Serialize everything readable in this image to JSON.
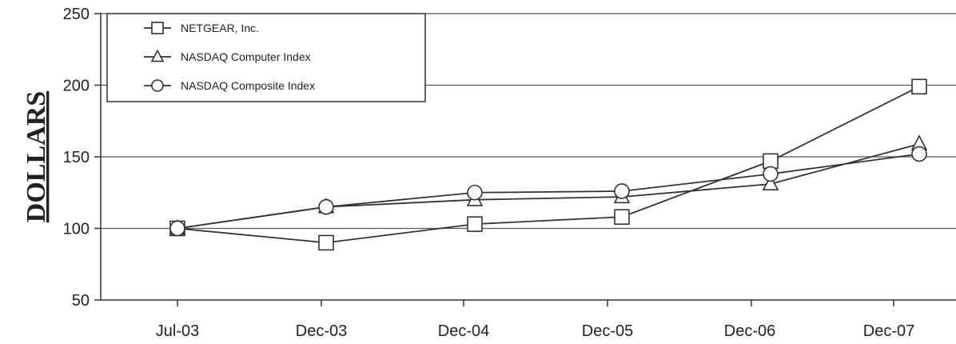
{
  "chart_data": {
    "type": "line",
    "categories": [
      "Jul-03",
      "Dec-03",
      "Dec-04",
      "Dec-05",
      "Dec-06",
      "Dec-07"
    ],
    "ylabel": "DOLLARS",
    "ylim": [
      50,
      250
    ],
    "yticks": [
      50,
      100,
      150,
      200,
      250
    ],
    "grid": true,
    "legend_position": "top-left",
    "series": [
      {
        "name": "NETGEAR, Inc.",
        "marker": "square",
        "values": [
          100,
          90,
          103,
          108,
          147,
          199
        ]
      },
      {
        "name": "NASDAQ Computer Index",
        "marker": "triangle",
        "values": [
          100,
          115,
          120,
          122,
          131,
          159
        ]
      },
      {
        "name": "NASDAQ Composite Index",
        "marker": "circle",
        "values": [
          100,
          115,
          125,
          126,
          138,
          152
        ]
      }
    ]
  }
}
